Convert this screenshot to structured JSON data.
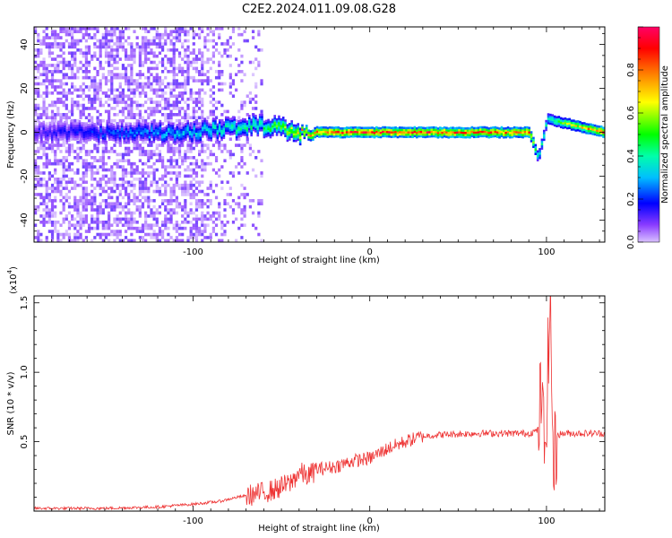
{
  "title": "C2E2.2024.011.09.08.G28",
  "chart_data": [
    {
      "type": "heatmap",
      "xlabel": "Height of straight line (km)",
      "ylabel": "Frequency (Hz)",
      "xlim": [
        -190,
        133
      ],
      "ylim": [
        -50,
        48
      ],
      "xticks": [
        -100,
        0,
        100
      ],
      "yticks": [
        -40,
        -20,
        0,
        20,
        40
      ],
      "grid": false,
      "colorbar": {
        "label": "Normalized spectral amplitude",
        "range": [
          0,
          1
        ],
        "ticks": [
          0.0,
          0.2,
          0.4,
          0.6,
          0.8
        ],
        "colors": [
          "#c9a6ff",
          "#6a00ff",
          "#0000ff",
          "#00e5ff",
          "#00ff00",
          "#ffff00",
          "#ff7f00",
          "#ff0000",
          "#ff0066"
        ]
      },
      "ridge": {
        "description_points_x": [
          -190,
          -110,
          -60,
          -40,
          -20,
          0,
          50,
          90,
          95,
          100,
          133
        ],
        "center_freq": [
          0,
          0,
          3,
          0,
          0,
          0,
          0,
          0,
          -12,
          6,
          0
        ],
        "amplitude": [
          0.15,
          0.35,
          0.5,
          0.75,
          0.9,
          0.9,
          0.9,
          0.85,
          0.4,
          0.45,
          0.9
        ]
      }
    },
    {
      "type": "line",
      "xlabel": "Height of straight line (km)",
      "ylabel": "SNR (10 * v/v)",
      "yscale_label": "(x10",
      "yscale_exp": "4",
      "xlim": [
        -190,
        133
      ],
      "ylim": [
        0,
        1.55
      ],
      "xticks": [
        -100,
        0,
        100
      ],
      "yticks": [
        0.5,
        1.0,
        1.5
      ],
      "ytick_labels": [
        "0.5",
        "1.0",
        "1.5"
      ],
      "color": "#ee3333",
      "series": [
        {
          "x": [
            -190,
            -150,
            -120,
            -100,
            -85,
            -75,
            -65,
            -55,
            -45,
            -40,
            -35,
            -30,
            -20,
            -10,
            0,
            10,
            20,
            30,
            40,
            60,
            80,
            90,
            95,
            97,
            99,
            101,
            102,
            104,
            106,
            110,
            120,
            133
          ],
          "y": [
            0.02,
            0.02,
            0.03,
            0.05,
            0.07,
            0.1,
            0.12,
            0.15,
            0.2,
            0.28,
            0.25,
            0.3,
            0.32,
            0.36,
            0.38,
            0.45,
            0.5,
            0.54,
            0.55,
            0.56,
            0.56,
            0.56,
            0.58,
            0.85,
            0.4,
            1.1,
            1.55,
            0.3,
            0.55,
            0.56,
            0.56,
            0.56
          ]
        }
      ]
    }
  ]
}
